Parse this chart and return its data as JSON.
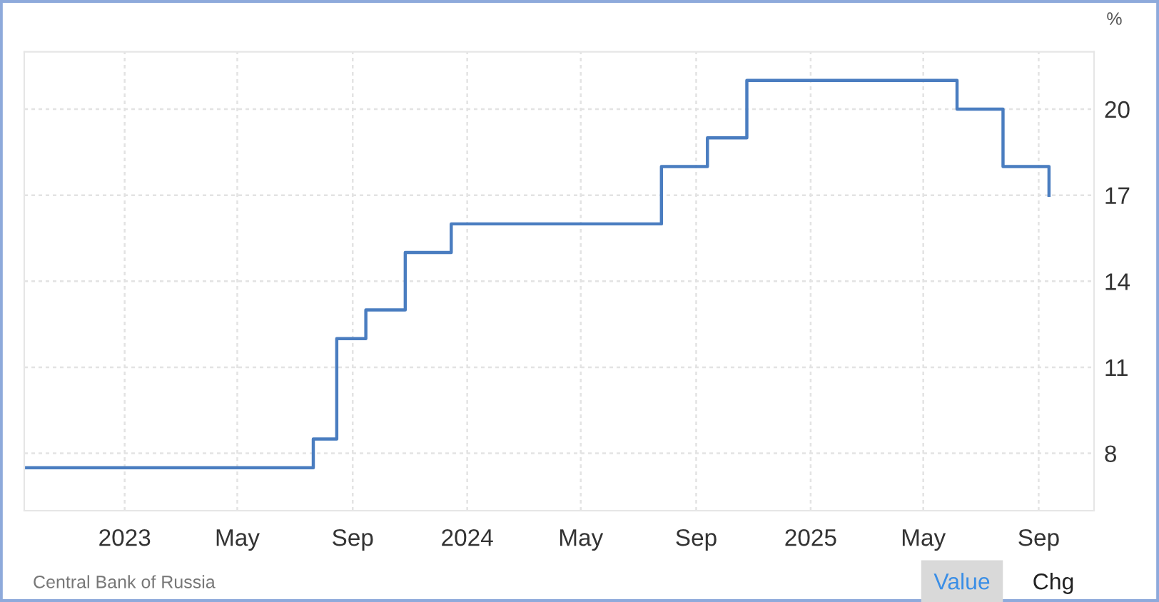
{
  "chart_data": {
    "type": "step",
    "x": [
      "2022-09-16",
      "2023-07-21",
      "2023-08-15",
      "2023-09-15",
      "2023-10-27",
      "2023-12-15",
      "2024-07-26",
      "2024-09-13",
      "2024-10-25",
      "2025-06-06",
      "2025-07-25",
      "2025-09-12"
    ],
    "series": [
      {
        "color": "#4a7dc0",
        "values": [
          7.5,
          8.5,
          12,
          13,
          15,
          16,
          18,
          19,
          21,
          20,
          18,
          17
        ]
      }
    ],
    "ylabel": "%",
    "xlim": [
      "2022-09-16",
      "2025-10-30"
    ],
    "ylim": [
      6,
      22
    ],
    "yticks": [
      8,
      11,
      14,
      17,
      20
    ],
    "xticks": [
      {
        "value": "2023-01-01",
        "label": "2023"
      },
      {
        "value": "2023-05-01",
        "label": "May"
      },
      {
        "value": "2023-09-01",
        "label": "Sep"
      },
      {
        "value": "2024-01-01",
        "label": "2024"
      },
      {
        "value": "2024-05-01",
        "label": "May"
      },
      {
        "value": "2024-09-01",
        "label": "Sep"
      },
      {
        "value": "2025-01-01",
        "label": "2025"
      },
      {
        "value": "2025-05-01",
        "label": "May"
      },
      {
        "value": "2025-09-01",
        "label": "Sep"
      }
    ],
    "grid": true,
    "annotations": [
      "Central Bank of Russia",
      "Value",
      "Chg"
    ]
  }
}
